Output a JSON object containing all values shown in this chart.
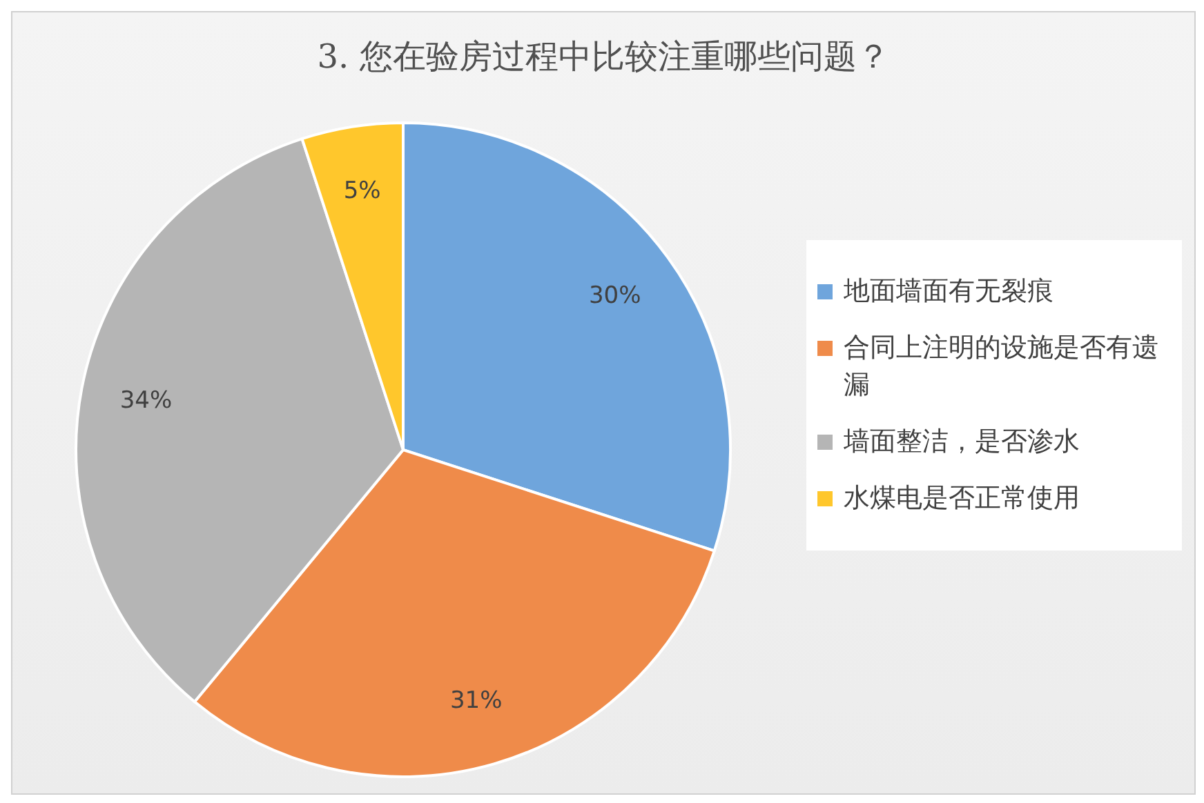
{
  "chart_data": {
    "type": "pie",
    "title": "3. 您在验房过程中比较注重哪些问题？",
    "categories": [
      "地面墙面有无裂痕",
      "合同上注明的设施是否有遗漏",
      "墙面整洁，是否渗水",
      "水煤电是否正常使用"
    ],
    "values": [
      30,
      31,
      34,
      5
    ],
    "colors": [
      "#6fa5dc",
      "#ef8b4a",
      "#b5b5b5",
      "#ffc72c"
    ],
    "value_labels": [
      "30%",
      "31%",
      "34%",
      "5%"
    ],
    "legend": "right"
  }
}
